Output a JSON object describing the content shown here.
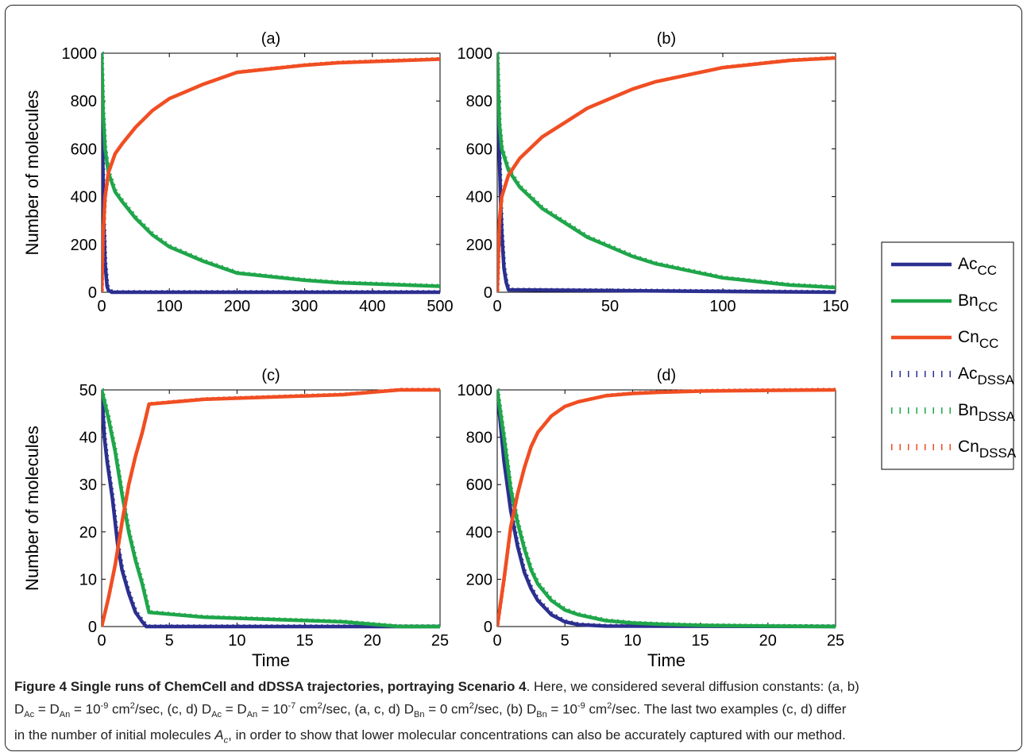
{
  "chart_data": [
    {
      "panel": "(a)",
      "type": "line",
      "title": "(a)",
      "xlabel": "",
      "ylabel": "Number of molecules",
      "xlim": [
        0,
        500
      ],
      "ylim": [
        0,
        1000
      ],
      "xticks": [
        0,
        100,
        200,
        300,
        400,
        500
      ],
      "yticks": [
        0,
        200,
        400,
        600,
        800,
        1000
      ],
      "series": [
        {
          "name": "Ac_CC",
          "x": [
            0,
            1,
            2,
            3,
            5,
            8,
            10,
            15,
            500
          ],
          "y": [
            1000,
            700,
            480,
            300,
            120,
            25,
            8,
            0,
            0
          ]
        },
        {
          "name": "Bn_CC",
          "x": [
            0,
            2,
            5,
            10,
            20,
            30,
            50,
            75,
            100,
            125,
            150,
            200,
            250,
            300,
            350,
            400,
            450,
            500
          ],
          "y": [
            1000,
            760,
            600,
            500,
            420,
            380,
            310,
            240,
            190,
            160,
            130,
            80,
            65,
            50,
            40,
            35,
            30,
            25
          ]
        },
        {
          "name": "Cn_CC",
          "x": [
            0,
            2,
            5,
            10,
            20,
            30,
            50,
            75,
            100,
            125,
            150,
            200,
            250,
            300,
            350,
            400,
            450,
            500
          ],
          "y": [
            0,
            240,
            400,
            500,
            580,
            620,
            690,
            760,
            810,
            840,
            870,
            920,
            935,
            950,
            960,
            965,
            970,
            975
          ]
        }
      ]
    },
    {
      "panel": "(b)",
      "type": "line",
      "title": "(b)",
      "xlabel": "",
      "ylabel": "",
      "xlim": [
        0,
        150
      ],
      "ylim": [
        0,
        1000
      ],
      "xticks": [
        0,
        50,
        100,
        150
      ],
      "yticks": [
        0,
        200,
        400,
        600,
        800,
        1000
      ],
      "series": [
        {
          "name": "Ac_CC",
          "x": [
            0,
            0.5,
            1,
            1.5,
            2,
            3,
            4,
            5,
            150
          ],
          "y": [
            1000,
            800,
            560,
            380,
            250,
            100,
            40,
            10,
            0
          ]
        },
        {
          "name": "Bn_CC",
          "x": [
            0,
            1,
            2,
            5,
            10,
            20,
            30,
            40,
            50,
            60,
            70,
            80,
            90,
            100,
            110,
            120,
            130,
            140,
            150
          ],
          "y": [
            1000,
            700,
            600,
            510,
            440,
            350,
            290,
            230,
            190,
            150,
            120,
            100,
            80,
            60,
            50,
            40,
            30,
            25,
            20
          ]
        },
        {
          "name": "Cn_CC",
          "x": [
            0,
            1,
            2,
            5,
            10,
            20,
            30,
            40,
            50,
            60,
            70,
            80,
            90,
            100,
            110,
            120,
            130,
            140,
            150
          ],
          "y": [
            0,
            300,
            400,
            490,
            560,
            650,
            710,
            770,
            810,
            850,
            880,
            900,
            920,
            940,
            950,
            960,
            970,
            975,
            980
          ]
        }
      ]
    },
    {
      "panel": "(c)",
      "type": "line",
      "title": "(c)",
      "xlabel": "Time",
      "ylabel": "Number of molecules",
      "xlim": [
        0,
        25
      ],
      "ylim": [
        0,
        50
      ],
      "xticks": [
        0,
        5,
        10,
        15,
        20,
        25
      ],
      "yticks": [
        0,
        10,
        20,
        30,
        40,
        50
      ],
      "series": [
        {
          "name": "Ac_CC",
          "x": [
            0,
            0.2,
            0.4,
            0.6,
            0.8,
            1.0,
            1.2,
            1.5,
            2.0,
            2.5,
            3.0,
            3.3,
            25
          ],
          "y": [
            50,
            40,
            35,
            31,
            27,
            22,
            17,
            12,
            7,
            3,
            1,
            0,
            0
          ]
        },
        {
          "name": "Bn_CC",
          "x": [
            0,
            0.5,
            1.0,
            1.5,
            2.0,
            2.5,
            3.0,
            3.5,
            7.5,
            17.8,
            22,
            25
          ],
          "y": [
            50,
            44,
            37,
            28,
            20,
            14,
            9,
            3,
            2,
            1,
            0,
            0
          ]
        },
        {
          "name": "Cn_CC",
          "x": [
            0,
            0.5,
            1.0,
            1.5,
            2.0,
            2.5,
            3.0,
            3.5,
            7.5,
            17.8,
            22,
            25
          ],
          "y": [
            0,
            6,
            13,
            22,
            30,
            36,
            41,
            47,
            48,
            49,
            50,
            50
          ]
        }
      ]
    },
    {
      "panel": "(d)",
      "type": "line",
      "title": "(d)",
      "xlabel": "Time",
      "ylabel": "",
      "xlim": [
        0,
        25
      ],
      "ylim": [
        0,
        1000
      ],
      "xticks": [
        0,
        5,
        10,
        15,
        20,
        25
      ],
      "yticks": [
        0,
        200,
        400,
        600,
        800,
        1000
      ],
      "series": [
        {
          "name": "Ac_CC",
          "x": [
            0,
            0.5,
            1.0,
            1.5,
            2.0,
            2.5,
            3.0,
            4.0,
            5.0,
            6.0,
            8.0,
            25
          ],
          "y": [
            1000,
            700,
            490,
            340,
            230,
            160,
            110,
            50,
            20,
            8,
            2,
            0
          ]
        },
        {
          "name": "Bn_CC",
          "x": [
            0,
            0.5,
            1.0,
            1.5,
            2.0,
            2.5,
            3.0,
            4.0,
            5.0,
            6.0,
            8.0,
            10,
            12,
            15,
            20,
            25
          ],
          "y": [
            1000,
            800,
            580,
            440,
            330,
            240,
            180,
            110,
            70,
            50,
            25,
            15,
            10,
            5,
            2,
            0
          ]
        },
        {
          "name": "Cn_CC",
          "x": [
            0,
            0.5,
            1.0,
            1.5,
            2.0,
            2.5,
            3.0,
            4.0,
            5.0,
            6.0,
            8.0,
            10,
            12,
            15,
            20,
            25
          ],
          "y": [
            0,
            200,
            420,
            560,
            670,
            760,
            820,
            890,
            930,
            950,
            975,
            985,
            990,
            995,
            998,
            1000
          ]
        }
      ]
    }
  ],
  "legend": {
    "placement": "right",
    "entries": [
      {
        "base": "Ac",
        "sub": "CC",
        "style": "solid",
        "color": "#2b2f8f"
      },
      {
        "base": "Bn",
        "sub": "CC",
        "style": "solid",
        "color": "#1fa64a"
      },
      {
        "base": "Cn",
        "sub": "CC",
        "style": "solid",
        "color": "#f04e23"
      },
      {
        "base": "Ac",
        "sub": "DSSA",
        "style": "dotted",
        "color": "#2b2f8f"
      },
      {
        "base": "Bn",
        "sub": "DSSA",
        "style": "dotted",
        "color": "#1fa64a"
      },
      {
        "base": "Cn",
        "sub": "DSSA",
        "style": "dotted",
        "color": "#f04e23"
      }
    ]
  },
  "colors": {
    "Ac": "#2b2f8f",
    "Bn": "#1fa64a",
    "Cn": "#f04e23"
  },
  "caption": {
    "bold": "Figure 4 Single runs of ChemCell and dDSSA trajectories, portraying Scenario 4",
    "line1_rest": ". Here, we considered several diffusion constants: (a, b)",
    "line2": "D_Ac = D_An = 10^-9 cm^2/sec, (c, d) D_Ac = D_An = 10^-7 cm^2/sec, (a, c, d) D_Bn = 0 cm^2/sec, (b) D_Bn = 10^-9 cm^2/sec. The last two examples (c, d) differ",
    "line3": "in the number of initial molecules A_c, in order to show that lower molecular concentrations can also be accurately captured with our method."
  }
}
